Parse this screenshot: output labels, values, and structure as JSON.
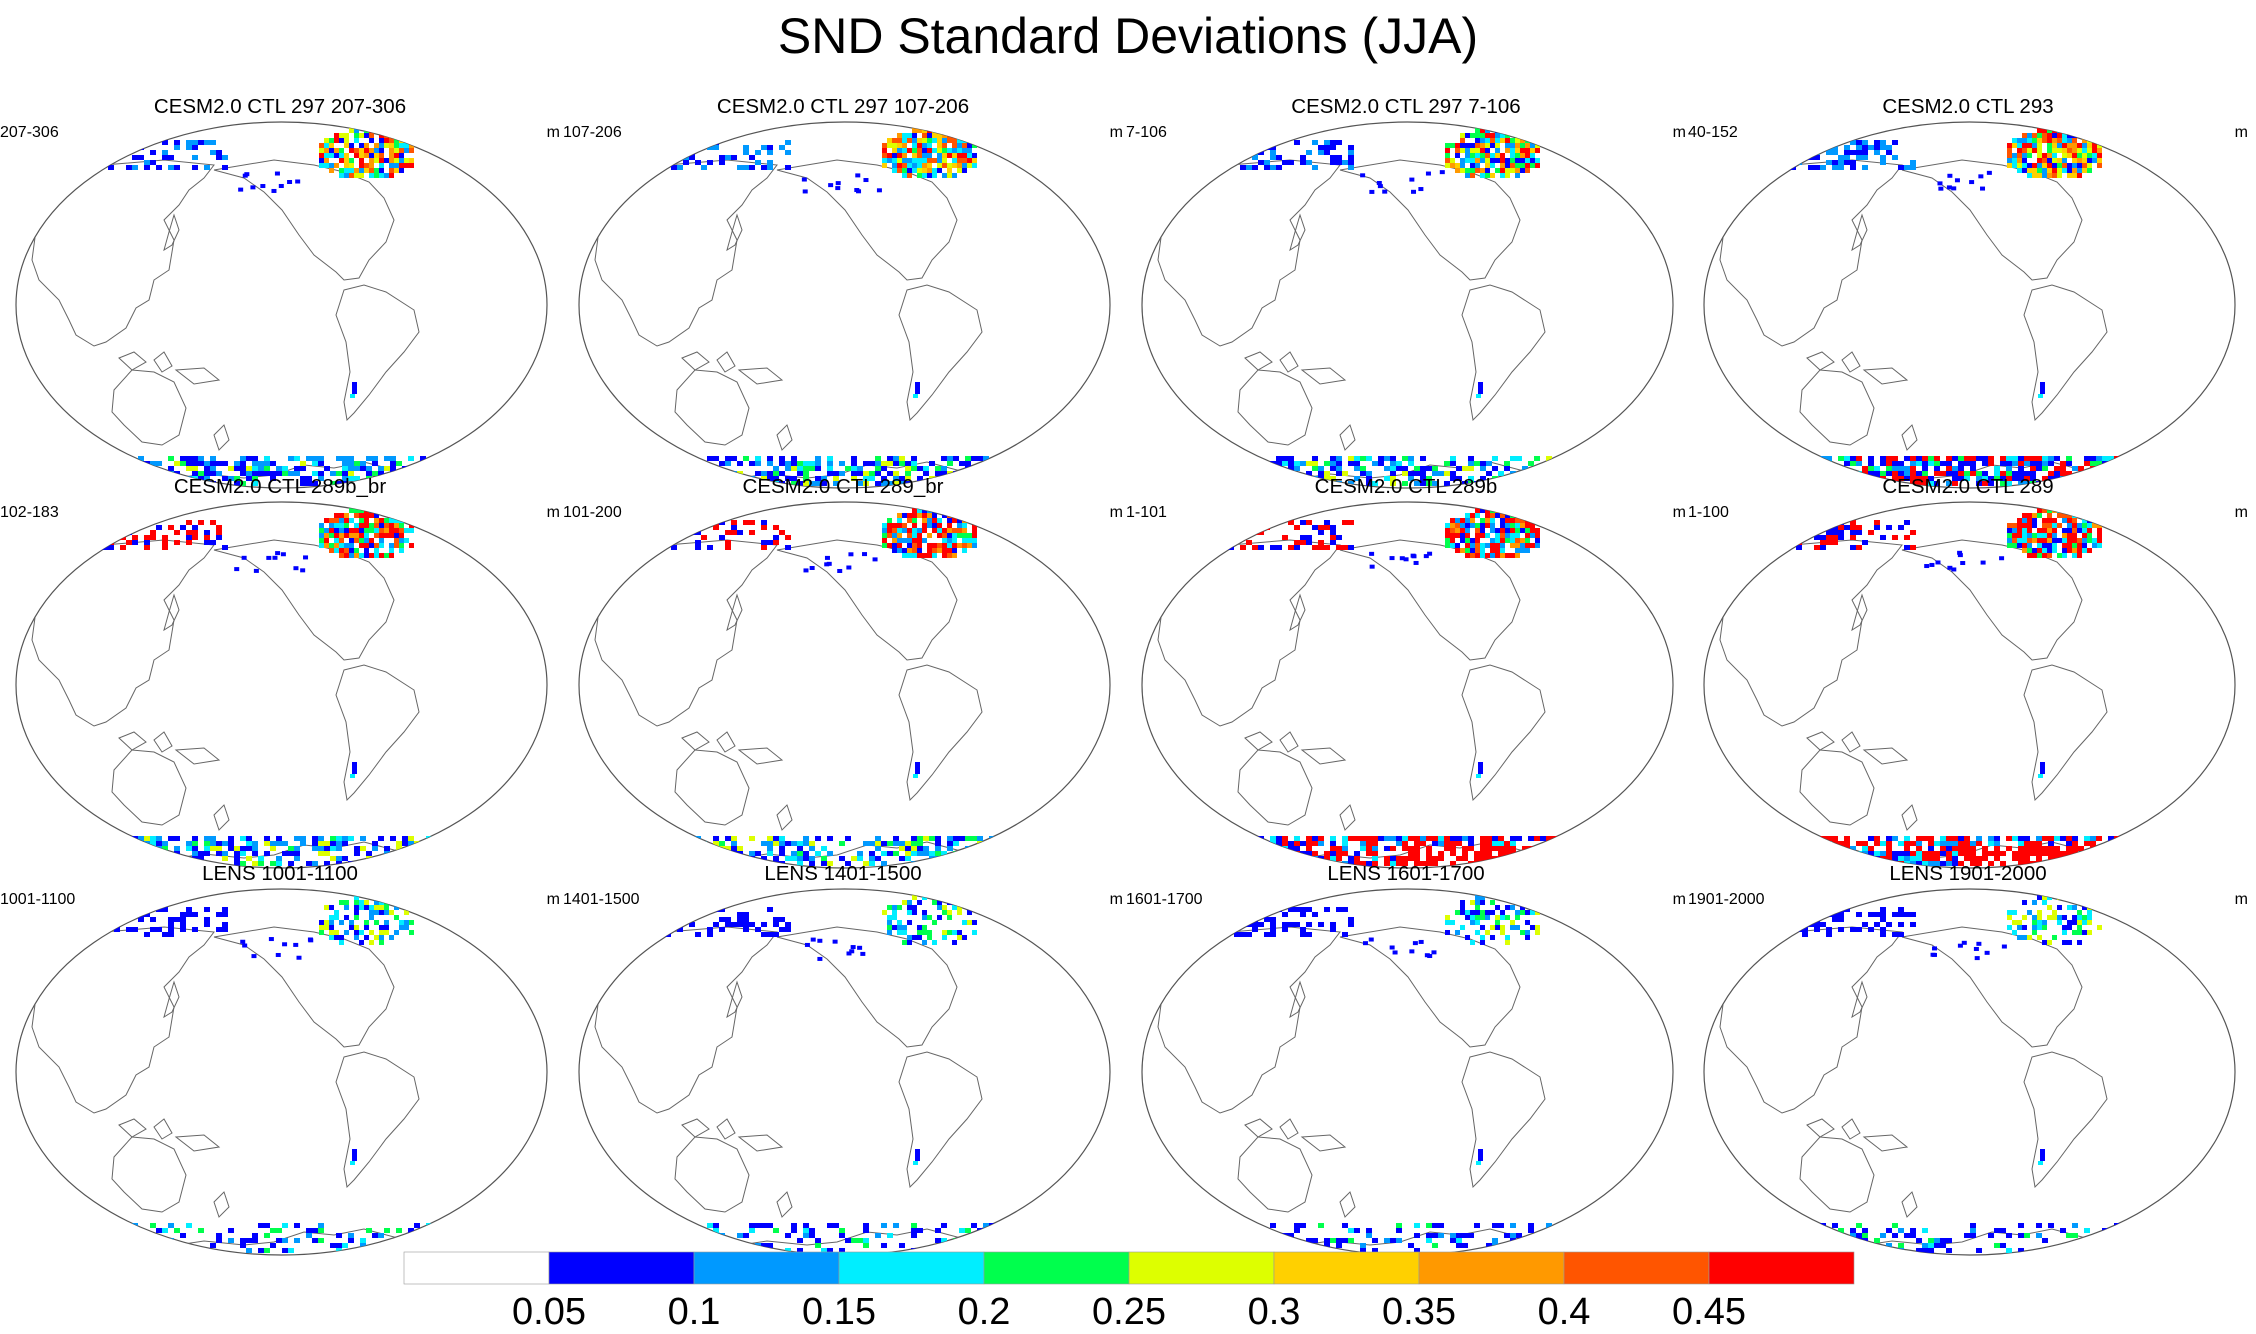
{
  "title": "SND Standard Deviations (JJA)",
  "panels": [
    {
      "title": "CESM2.0 CTL 297 207-306",
      "range": "207-306",
      "units": "m",
      "ant_level": 1,
      "nh_level": 2
    },
    {
      "title": "CESM2.0 CTL 297 107-206",
      "range": "107-206",
      "units": "m",
      "ant_level": 1,
      "nh_level": 2
    },
    {
      "title": "CESM2.0 CTL 297 7-106",
      "range": "7-106",
      "units": "m",
      "ant_level": 1,
      "nh_level": 2
    },
    {
      "title": "CESM2.0 CTL 293",
      "range": "40-152",
      "units": "m",
      "ant_level": 2,
      "nh_level": 2
    },
    {
      "title": "CESM2.0 CTL 289b_br",
      "range": "102-183",
      "units": "m",
      "ant_level": 1,
      "nh_level": 3
    },
    {
      "title": "CESM2.0 CTL 289_br",
      "range": "101-200",
      "units": "m",
      "ant_level": 1,
      "nh_level": 3
    },
    {
      "title": "CESM2.0 CTL 289b",
      "range": "1-101",
      "units": "m",
      "ant_level": 3,
      "nh_level": 3
    },
    {
      "title": "CESM2.0 CTL 289",
      "range": "1-100",
      "units": "m",
      "ant_level": 3,
      "nh_level": 3
    },
    {
      "title": "LENS 1001-1100",
      "range": "1001-1100",
      "units": "m",
      "ant_level": 0,
      "nh_level": 1
    },
    {
      "title": "LENS 1401-1500",
      "range": "1401-1500",
      "units": "m",
      "ant_level": 0,
      "nh_level": 1
    },
    {
      "title": "LENS 1601-1700",
      "range": "1601-1700",
      "units": "m",
      "ant_level": 0,
      "nh_level": 1
    },
    {
      "title": "LENS 1901-2000",
      "range": "1901-2000",
      "units": "m",
      "ant_level": 0,
      "nh_level": 1
    }
  ],
  "colorbar": {
    "labels": [
      "0.05",
      "0.1",
      "0.15",
      "0.2",
      "0.25",
      "0.3",
      "0.35",
      "0.4",
      "0.45"
    ],
    "colors": [
      "#ffffff",
      "#0000ff",
      "#0099ff",
      "#00eeff",
      "#00ff4d",
      "#ddff00",
      "#ffd000",
      "#ff9900",
      "#ff5500",
      "#ff0000"
    ]
  }
}
